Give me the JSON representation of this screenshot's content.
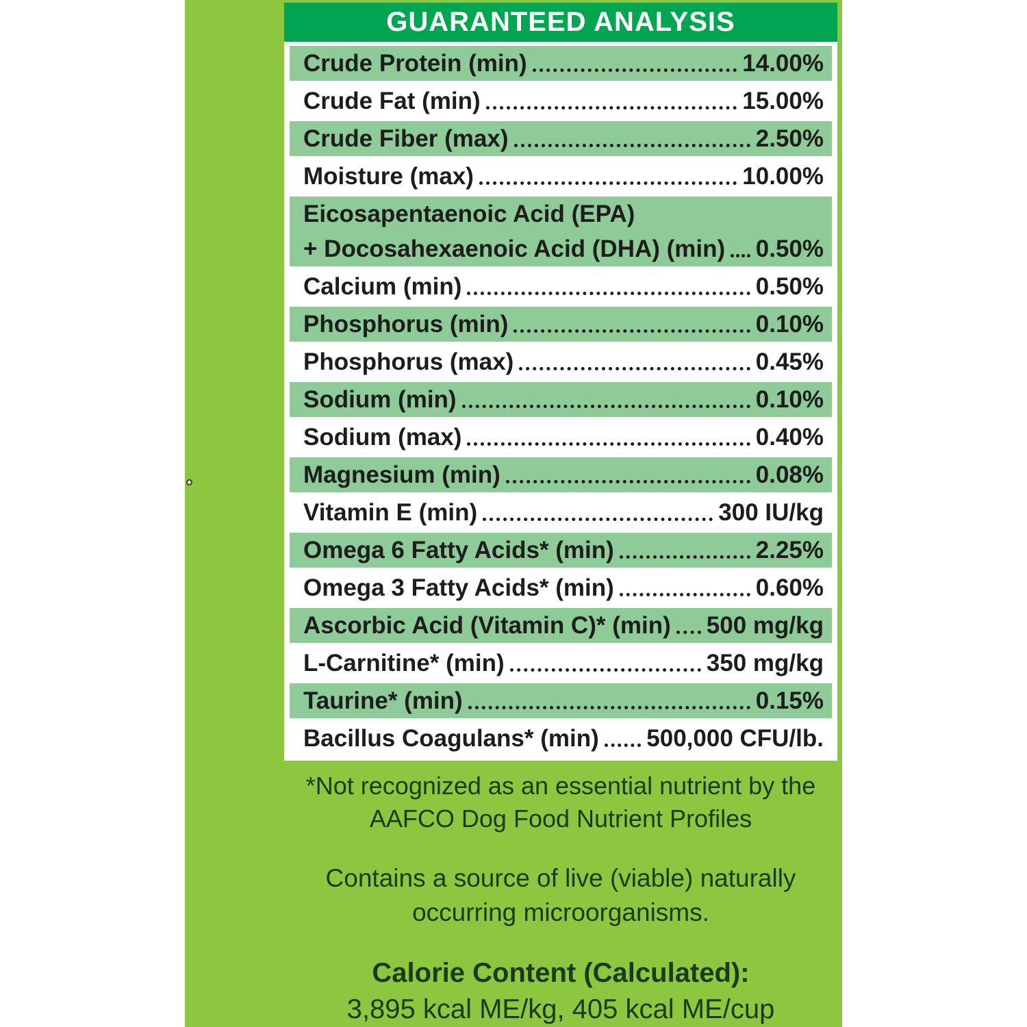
{
  "header": {
    "title": "GUARANTEED ANALYSIS"
  },
  "table": {
    "rows": [
      {
        "label": "Crude Protein (min)",
        "value": "14.00%",
        "shade": "green"
      },
      {
        "label": "Crude Fat (min)",
        "value": "15.00%",
        "shade": "white"
      },
      {
        "label": "Crude Fiber (max)",
        "value": "2.50%",
        "shade": "green"
      },
      {
        "label": "Moisture (max)",
        "value": "10.00%",
        "shade": "white"
      },
      {
        "pre_label": "Eicosapentaenoic Acid (EPA)",
        "label": "+ Docosahexaenoic Acid (DHA) (min)",
        "value": "0.50%",
        "shade": "green"
      },
      {
        "label": "Calcium (min)",
        "value": "0.50%",
        "shade": "white"
      },
      {
        "label": "Phosphorus (min)",
        "value": "0.10%",
        "shade": "green"
      },
      {
        "label": "Phosphorus (max)",
        "value": "0.45%",
        "shade": "white"
      },
      {
        "label": "Sodium (min)",
        "value": "0.10%",
        "shade": "green"
      },
      {
        "label": "Sodium (max)",
        "value": "0.40%",
        "shade": "white"
      },
      {
        "label": "Magnesium (min)",
        "value": "0.08%",
        "shade": "green"
      },
      {
        "label": "Vitamin E (min)",
        "value": "300 IU/kg",
        "shade": "white"
      },
      {
        "label": "Omega 6 Fatty Acids* (min)",
        "value": "2.25%",
        "shade": "green"
      },
      {
        "label": "Omega 3 Fatty Acids* (min)",
        "value": "0.60%",
        "shade": "white"
      },
      {
        "label": "Ascorbic Acid (Vitamin C)* (min)",
        "value": "500 mg/kg",
        "shade": "green"
      },
      {
        "label": "L-Carnitine* (min)",
        "value": "350 mg/kg",
        "shade": "white"
      },
      {
        "label": "Taurine* (min)",
        "value": "0.15%",
        "shade": "green"
      },
      {
        "label": "Bacillus Coagulans* (min)",
        "value": "500,000 CFU/lb.",
        "shade": "white"
      }
    ]
  },
  "notes": {
    "footnote_line1": "*Not recognized as an essential nutrient by the",
    "footnote_line2": "AAFCO Dog Food Nutrient Profiles",
    "microorganisms_line1": "Contains a source of live (viable) naturally",
    "microorganisms_line2": "occurring microorganisms.",
    "calorie_heading": "Calorie Content (Calculated):",
    "calorie_values": "3,895 kcal ME/kg, 405 kcal ME/cup"
  },
  "colors": {
    "panel_background": "#8dc63f",
    "header_bar": "#00a551",
    "header_text": "#ffffff",
    "row_stripe_green": "#8ecb99",
    "row_stripe_white": "#ffffff",
    "table_text": "#1d1d1b",
    "note_text": "#1c3a1c"
  }
}
